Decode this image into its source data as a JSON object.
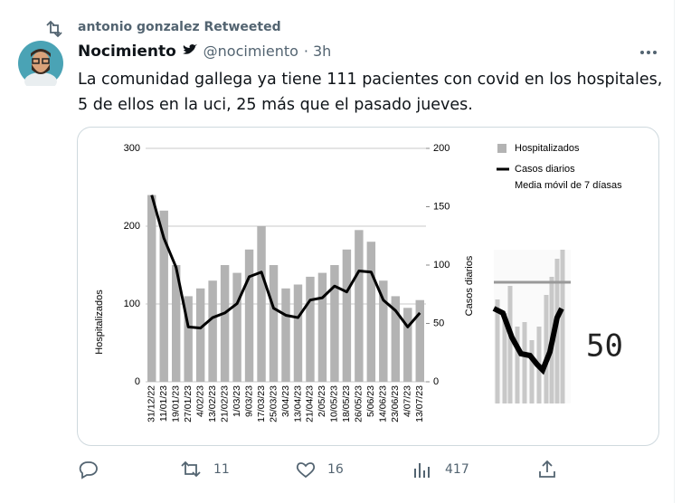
{
  "retweet_banner": "antonio gonzalez Retweeted",
  "author": {
    "name": "Nocimiento",
    "handle": "@nocimiento",
    "time": "· 3h"
  },
  "text": "La comunidad gallega ya tiene 111 pacientes con covid en los hospitales, 5 de ellos en la uci, 25 más que el pasado jueves.",
  "chart_data": {
    "type": "bar",
    "categories": [
      "31/12/22",
      "11/01/23",
      "19/01/23",
      "27/01/23",
      "4/02/23",
      "13/02/23",
      "21/02/23",
      "1/03/23",
      "9/03/23",
      "17/03/23",
      "25/03/23",
      "3/04/23",
      "13/04/23",
      "21/04/23",
      "2/05/23",
      "10/05/23",
      "18/05/23",
      "26/05/23",
      "5/06/23",
      "14/06/23",
      "23/06/23",
      "4/07/23",
      "13/07/23"
    ],
    "series": [
      {
        "name": "Hospitalizados",
        "color": "#b3b3b3",
        "values": [
          240,
          220,
          150,
          110,
          120,
          130,
          150,
          140,
          170,
          200,
          150,
          120,
          125,
          135,
          140,
          150,
          170,
          195,
          180,
          130,
          110,
          95,
          105
        ]
      },
      {
        "name": "Casos diarios",
        "color": "#000000",
        "axis": "y2",
        "values": [
          160,
          123,
          98,
          47,
          46,
          55,
          59,
          67,
          90,
          94,
          63,
          57,
          55,
          70,
          72,
          82,
          77,
          95,
          94,
          70,
          61,
          47,
          59
        ]
      }
    ],
    "legend_note": "Media móvil de 7 díasas",
    "ylabel": "Hospitalizados",
    "y2label": "Casos diarios",
    "ylim": [
      0,
      300
    ],
    "yticks": [
      0,
      100,
      200,
      300
    ],
    "y2lim": [
      0,
      200
    ],
    "y2ticks": [
      0,
      50,
      100,
      150,
      200
    ],
    "grid": true
  },
  "zoom_label": 50,
  "actions": {
    "retweets": 11,
    "likes": 16,
    "views": 417
  }
}
